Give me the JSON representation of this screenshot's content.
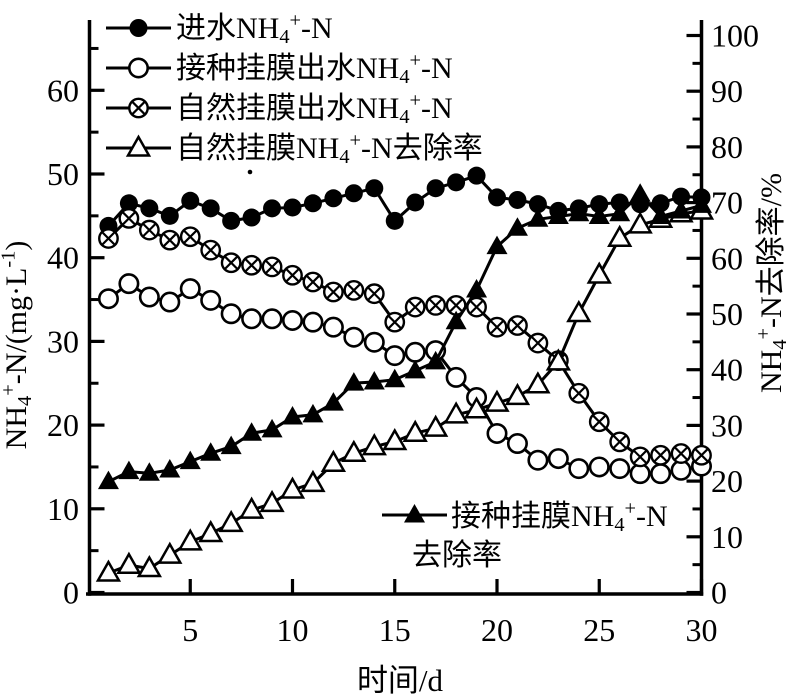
{
  "chart_data": {
    "type": "line",
    "title": "",
    "xlabel": "时间/d",
    "ylabel_left": "NH_{4}^{+}-N/(mg·L^{-1})",
    "ylabel_right": "NH_{4}^{+}-N去除率/%",
    "x_range": [
      0,
      30
    ],
    "y_left_range": [
      0,
      68
    ],
    "y_right_range": [
      0,
      102
    ],
    "x_ticks": [
      5,
      10,
      15,
      20,
      25,
      30
    ],
    "y_left_ticks": [
      0,
      10,
      20,
      30,
      40,
      50,
      60
    ],
    "y_right_ticks": [
      0,
      10,
      20,
      30,
      40,
      50,
      60,
      70,
      80,
      90,
      100
    ],
    "grid": false,
    "days": [
      1,
      2,
      3,
      4,
      5,
      6,
      7,
      8,
      9,
      10,
      11,
      12,
      13,
      14,
      15,
      16,
      17,
      18,
      19,
      20,
      21,
      22,
      23,
      24,
      25,
      26,
      27,
      28,
      29,
      30
    ],
    "series": [
      {
        "name": "进水NH_{4}^{+}-N",
        "marker": "filled-circle",
        "axis": "left",
        "legend": "top",
        "values": [
          43.8,
          46.5,
          45.9,
          45.0,
          46.8,
          45.9,
          44.4,
          44.8,
          45.9,
          46.0,
          46.5,
          47.1,
          47.7,
          48.3,
          44.4,
          46.6,
          48.3,
          49.0,
          49.8,
          47.2,
          46.9,
          46.4,
          45.6,
          45.9,
          46.4,
          46.6,
          46.4,
          46.5,
          47.3,
          47.2
        ]
      },
      {
        "name": "接种挂膜出水NH_{4}^{+}-N",
        "marker": "open-circle",
        "axis": "left",
        "legend": "top",
        "values": [
          35.1,
          36.9,
          35.3,
          34.7,
          36.3,
          34.9,
          33.3,
          32.7,
          32.7,
          32.5,
          32.3,
          31.7,
          30.5,
          29.9,
          28.3,
          28.7,
          28.9,
          25.7,
          23.3,
          19.0,
          17.8,
          15.8,
          16.0,
          14.8,
          15.0,
          14.8,
          14.2,
          14.2,
          14.6,
          15.1
        ]
      },
      {
        "name": "自然挂膜出水NH_{4}^{+}-N",
        "marker": "x-circle",
        "axis": "left",
        "legend": "top",
        "values": [
          42.3,
          44.7,
          43.3,
          42.1,
          42.5,
          40.9,
          39.4,
          39.1,
          38.9,
          37.9,
          37.1,
          35.9,
          36.1,
          35.7,
          32.3,
          34.1,
          34.3,
          34.3,
          34.1,
          31.7,
          31.9,
          29.8,
          27.7,
          23.8,
          20.4,
          18.0,
          16.2,
          16.4,
          16.6,
          16.4
        ]
      },
      {
        "name": "自然挂膜NH_{4}^{+}-N去除率",
        "marker": "open-triangle",
        "axis": "right",
        "legend": "top",
        "values": [
          3.5,
          4.9,
          4.3,
          6.7,
          9.1,
          10.6,
          12.4,
          14.8,
          16.0,
          18.4,
          19.6,
          23.2,
          25.0,
          26.2,
          27.1,
          28.6,
          29.5,
          31.9,
          32.8,
          34.0,
          35.2,
          37.3,
          41.4,
          50.1,
          57.0,
          63.6,
          66.0,
          67.0,
          68.0,
          68.5
        ]
      },
      {
        "name": "接种挂膜NH_{4}^{+}-N去除率",
        "marker": "filled-triangle",
        "axis": "right",
        "legend": "bottom",
        "legend_lines": [
          "接种挂膜NH_{4}^{+}-N",
          "去除率"
        ],
        "values": [
          19.9,
          21.7,
          21.4,
          22.0,
          23.5,
          25.0,
          26.2,
          28.6,
          29.2,
          31.5,
          31.9,
          34.0,
          37.6,
          37.8,
          38.2,
          39.8,
          41.4,
          48.6,
          54.3,
          62.1,
          65.4,
          67.0,
          67.5,
          68.0,
          67.5,
          68.0,
          71.5,
          67.5,
          68.5,
          69.5
        ]
      }
    ],
    "colors": {
      "ink": "#000000",
      "paper": "#ffffff"
    }
  }
}
